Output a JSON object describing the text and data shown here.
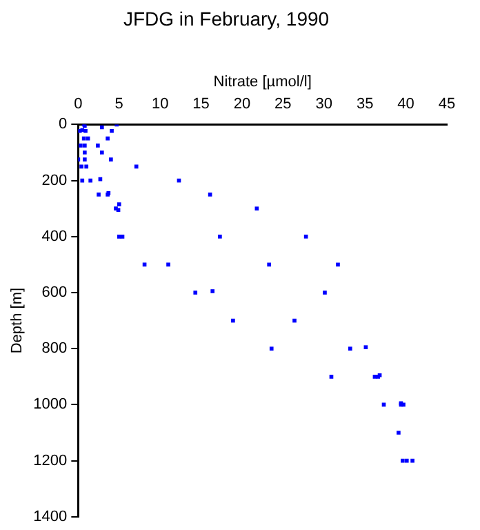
{
  "chart_data": {
    "type": "scatter",
    "title": "JFDG in February, 1990",
    "xlabel": "Nitrate [µmol/l]",
    "ylabel": "Depth [m]",
    "xlim": [
      0,
      45
    ],
    "xticks": [
      0,
      5,
      10,
      15,
      20,
      25,
      30,
      35,
      40,
      45
    ],
    "ylim": [
      1400,
      0
    ],
    "yticks": [
      0,
      200,
      400,
      600,
      800,
      1000,
      1200,
      1400
    ],
    "grid": false,
    "legend": false,
    "marker": "square",
    "series": [
      {
        "color": "#0000ff",
        "x": [
          0.7,
          0.8,
          0.5,
          0.2,
          0.9,
          2.9,
          4.7,
          4.1,
          3.6,
          1.2,
          0.7,
          0.3,
          0.8,
          2.4,
          2.9,
          0.8,
          0,
          0.8,
          4,
          0.4,
          1.0,
          7.1,
          0.5,
          1.5,
          2.7,
          12.3,
          2.5,
          3.6,
          3.7,
          16.1,
          5.0,
          4.6,
          4.9,
          5.0,
          5.4,
          17.3,
          8.1,
          11.0,
          14.3,
          16.4,
          18.9,
          21.8,
          27.8,
          23.3,
          31.7,
          30.1,
          26.4,
          23.6,
          33.2,
          35.1,
          30.9,
          36.2,
          36.6,
          36.8,
          37.3,
          39.4,
          39.4,
          39.7,
          39.1,
          39.6,
          40.1,
          40.8
        ],
        "values": [
          0,
          5,
          20,
          23,
          23,
          10,
          0,
          23,
          50,
          50,
          50,
          75,
          75,
          75,
          100,
          100,
          125,
          125,
          125,
          150,
          150,
          150,
          200,
          200,
          195,
          200,
          250,
          250,
          245,
          250,
          285,
          300,
          305,
          400,
          400,
          400,
          500,
          500,
          600,
          595,
          700,
          300,
          400,
          500,
          500,
          600,
          700,
          800,
          800,
          795,
          900,
          900,
          900,
          895,
          1000,
          1000,
          995,
          1000,
          1100,
          1200,
          1200,
          1200
        ]
      }
    ]
  }
}
